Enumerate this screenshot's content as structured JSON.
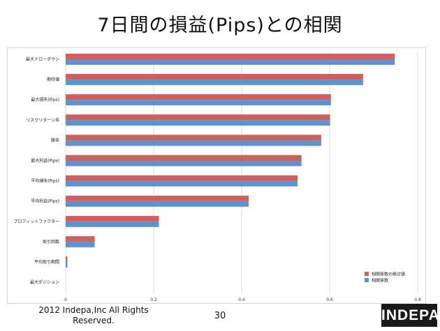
{
  "slide": {
    "title": "7日間の損益(Pips)との相関",
    "footer": "2012 Indepa,Inc All Rights Reserved.",
    "page_number": "30",
    "logo_text": "INDEPA"
  },
  "chart_data": {
    "type": "bar",
    "orientation": "horizontal",
    "categories": [
      "最大ドローダウン",
      "期待値",
      "最大損失(Pips)",
      "リスクリターン率",
      "勝率",
      "最大利益(Pips)",
      "平均損失(Pips)",
      "平均利益(Pips)",
      "プロフィットファクター",
      "取引回数",
      "平均取引期間",
      "最大ポジション"
    ],
    "series": [
      {
        "name": "相関係数の絶対値",
        "color": "#d0605d",
        "values": [
          0.748,
          0.676,
          0.603,
          0.601,
          0.581,
          0.536,
          0.527,
          0.416,
          0.212,
          0.066,
          0.004,
          0.0
        ]
      },
      {
        "name": "相関係数",
        "color": "#5f93cf",
        "values": [
          0.748,
          0.676,
          0.603,
          0.601,
          0.581,
          0.536,
          0.527,
          0.416,
          0.212,
          0.066,
          0.004,
          0.0
        ]
      }
    ],
    "xlim": [
      0,
      0.8
    ],
    "xticks": [
      "0",
      "0.2",
      "0.4",
      "0.6",
      "0.8"
    ],
    "grid": true,
    "legend": "bottom-right"
  }
}
